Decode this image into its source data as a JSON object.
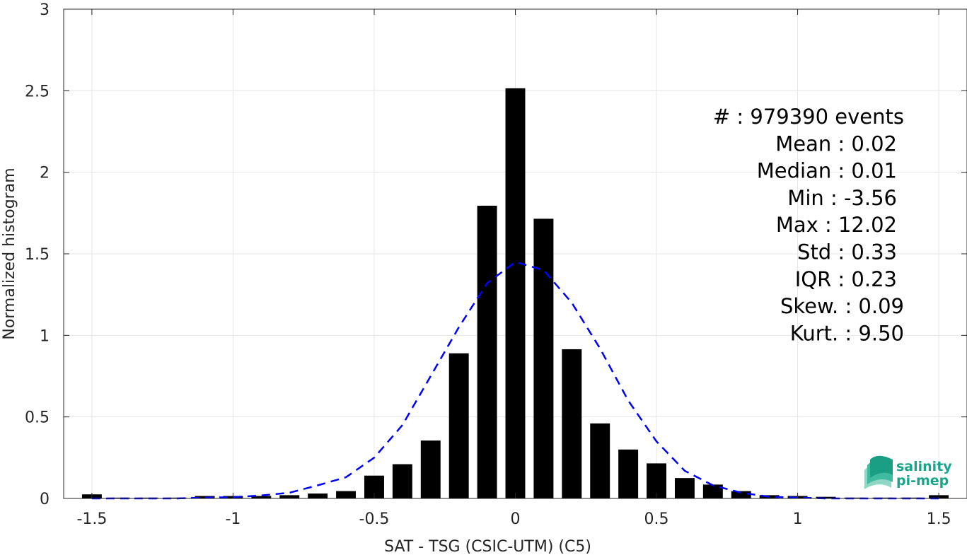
{
  "chart_data": {
    "type": "bar",
    "title": "",
    "xlabel": "SAT - TSG (CSIC-UTM) (C5)",
    "ylabel": "Normalized histogram",
    "xlim": [
      -1.6,
      1.6
    ],
    "ylim": [
      0,
      3
    ],
    "xticks": [
      -1.5,
      -1,
      -0.5,
      0,
      0.5,
      1,
      1.5
    ],
    "xtick_labels": [
      "-1.5",
      "-1",
      "-0.5",
      "0",
      "0.5",
      "1",
      "1.5"
    ],
    "yticks": [
      0,
      0.5,
      1,
      1.5,
      2,
      2.5,
      3
    ],
    "ytick_labels": [
      "0",
      "0.5",
      "1",
      "1.5",
      "2",
      "2.5",
      "3"
    ],
    "grid": true,
    "bar_width": 0.07,
    "bars": {
      "x": [
        -1.5,
        -1.4,
        -1.3,
        -1.2,
        -1.1,
        -1.0,
        -0.9,
        -0.8,
        -0.7,
        -0.6,
        -0.5,
        -0.4,
        -0.3,
        -0.2,
        -0.1,
        0.0,
        0.1,
        0.2,
        0.3,
        0.4,
        0.5,
        0.6,
        0.7,
        0.8,
        0.9,
        1.0,
        1.1,
        1.2,
        1.3,
        1.4,
        1.5
      ],
      "values": [
        0.025,
        0.005,
        0.005,
        0.005,
        0.015,
        0.015,
        0.015,
        0.02,
        0.03,
        0.045,
        0.14,
        0.21,
        0.355,
        0.89,
        1.795,
        2.515,
        1.715,
        0.915,
        0.46,
        0.3,
        0.215,
        0.125,
        0.085,
        0.045,
        0.02,
        0.015,
        0.01,
        0.005,
        0.005,
        0.005,
        0.02
      ],
      "color": "#000000"
    },
    "fit_curve": {
      "style": "dashed",
      "color": "#0000ff",
      "x": [
        -1.5,
        -1.4,
        -1.3,
        -1.2,
        -1.1,
        -1.0,
        -0.9,
        -0.8,
        -0.7,
        -0.6,
        -0.5,
        -0.4,
        -0.3,
        -0.2,
        -0.1,
        0.0,
        0.1,
        0.2,
        0.3,
        0.4,
        0.5,
        0.6,
        0.7,
        0.8,
        0.9,
        1.0,
        1.1,
        1.2,
        1.3,
        1.4,
        1.5
      ],
      "y": [
        0.0,
        0.0,
        0.0,
        0.0,
        0.005,
        0.008,
        0.018,
        0.035,
        0.08,
        0.13,
        0.25,
        0.45,
        0.75,
        1.05,
        1.32,
        1.45,
        1.4,
        1.2,
        0.92,
        0.6,
        0.35,
        0.17,
        0.08,
        0.035,
        0.01,
        0.005,
        0.0,
        0.0,
        0.0,
        0.0,
        0.0
      ]
    },
    "stats_box": [
      "#  : 979390 events",
      "Mean : 0.02",
      "Median : 0.01",
      "Min : -3.56",
      "Max : 12.02",
      "Std : 0.33",
      "IQR : 0.23",
      "Skew. : 0.09",
      "Kurt. : 9.50"
    ]
  },
  "logo": {
    "line1": "salinity",
    "line2": "pi-mep"
  },
  "colors": {
    "axis": "#262626",
    "grid": "#e6e6e6",
    "logo_green": "#1aa58a"
  }
}
